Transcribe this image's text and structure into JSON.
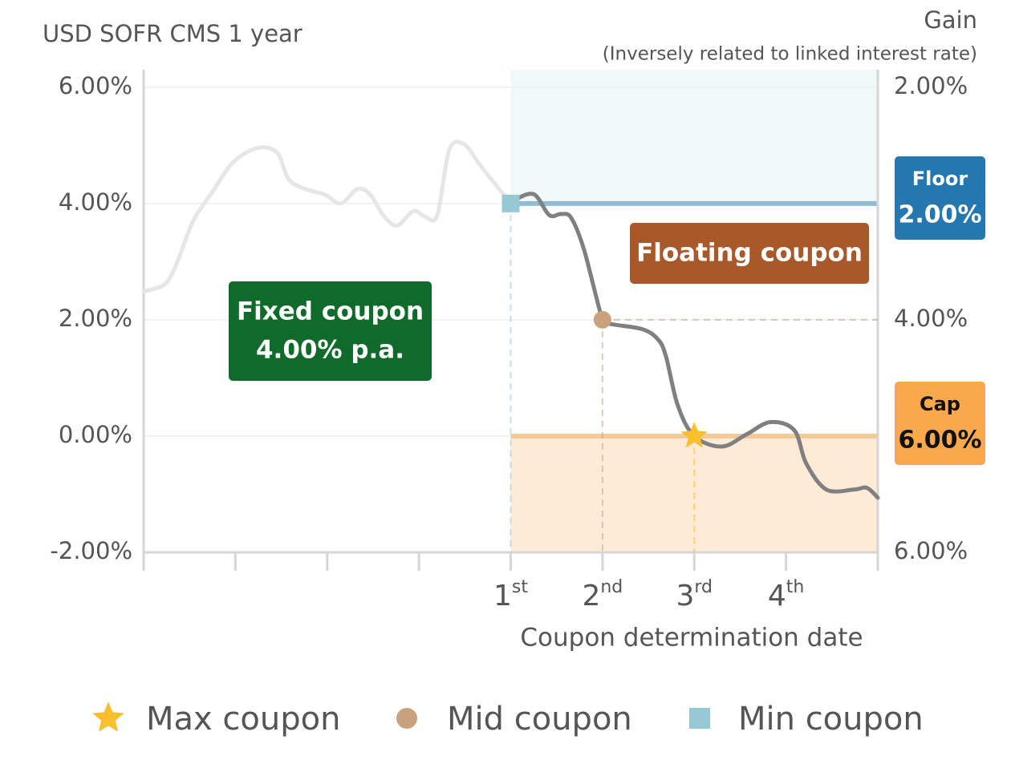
{
  "chart_data": {
    "type": "line",
    "y_label": "USD SOFR CMS 1 year",
    "y2_label": "Gain",
    "y2_subtitle": "(Inversely related to linked interest rate)",
    "x_label": "Coupon determination date",
    "xlim": [
      0,
      8
    ],
    "xticks": [
      {
        "value": 4,
        "label": "1st"
      },
      {
        "value": 5,
        "label": "2nd"
      },
      {
        "value": 6,
        "label": "3rd"
      },
      {
        "value": 7,
        "label": "4th"
      }
    ],
    "x_minor_ticks": [
      0,
      1,
      2,
      3,
      8
    ],
    "ylim": [
      -2,
      6.3
    ],
    "yticks": [
      {
        "value": -2,
        "label": "-2.00%"
      },
      {
        "value": 0,
        "label": "0.00%"
      },
      {
        "value": 2,
        "label": "2.00%"
      },
      {
        "value": 4,
        "label": "4.00%"
      },
      {
        "value": 6,
        "label": "6.00%"
      }
    ],
    "y2lim": [
      6,
      1.85
    ],
    "y2ticks": [
      {
        "value": 2,
        "label": "2.00%"
      },
      {
        "value": 4,
        "label": "4.00%"
      },
      {
        "value": 6,
        "label": "6.00%"
      }
    ],
    "grid": true,
    "series": [
      {
        "color": "#e6e6e6",
        "x": [
          0,
          0.23,
          0.36,
          0.54,
          0.75,
          0.97,
          1.23,
          1.45,
          1.58,
          1.76,
          1.98,
          2.15,
          2.33,
          2.47,
          2.61,
          2.76,
          2.94,
          3.07,
          3.2,
          3.33,
          3.49,
          3.68,
          3.95,
          4
        ],
        "values": [
          2.49,
          2.61,
          2.97,
          3.7,
          4.2,
          4.7,
          4.95,
          4.88,
          4.42,
          4.25,
          4.15,
          4.0,
          4.25,
          4.15,
          3.8,
          3.62,
          3.87,
          3.77,
          3.8,
          4.92,
          5.02,
          4.63,
          4.1,
          4.0
        ]
      },
      {
        "color": "#808080",
        "x": [
          4,
          4.03,
          4.25,
          4.42,
          4.55,
          4.66,
          4.8,
          5,
          5.08,
          5.43,
          5.6,
          5.69,
          5.82,
          6,
          6.3,
          6.57,
          6.83,
          7.09,
          7.22,
          7.44,
          7.74,
          7.88,
          8
        ],
        "values": [
          4.0,
          4.05,
          4.16,
          3.8,
          3.82,
          3.75,
          3.2,
          2.0,
          1.93,
          1.84,
          1.67,
          1.38,
          0.53,
          0.0,
          -0.18,
          0.03,
          0.24,
          0.1,
          -0.47,
          -0.92,
          -0.92,
          -0.89,
          -1.06
        ]
      }
    ],
    "floor": {
      "value": 4,
      "color": "#8fbcd4",
      "fill": "#f0fbf9"
    },
    "cap": {
      "value": 0,
      "color": "#f6ca96",
      "fill": "#fdebd8"
    },
    "markers": [
      {
        "name": "Max coupon",
        "x": 6,
        "value": 0,
        "color": "#fbbf2e",
        "shape": "star"
      },
      {
        "name": "Mid coupon",
        "x": 5,
        "value": 2,
        "color": "#c9a27c",
        "shape": "circle"
      },
      {
        "name": "Min coupon",
        "x": 4,
        "value": 4,
        "color": "#96c9d4",
        "shape": "square"
      }
    ],
    "annotations": [
      {
        "lines": [
          "Fixed coupon",
          "4.00% p.a."
        ],
        "color": "#0f6b2a",
        "text_color": "#ffffff"
      },
      {
        "lines": [
          "Floating coupon"
        ],
        "color": "#a9582a",
        "text_color": "#ffffff"
      },
      {
        "lines": [
          "Floor",
          "2.00%"
        ],
        "color": "#2577b0",
        "text_color": "#ffffff"
      },
      {
        "lines": [
          "Cap",
          "6.00%"
        ],
        "color": "#f9a84b",
        "text_color": "#111111"
      }
    ]
  }
}
